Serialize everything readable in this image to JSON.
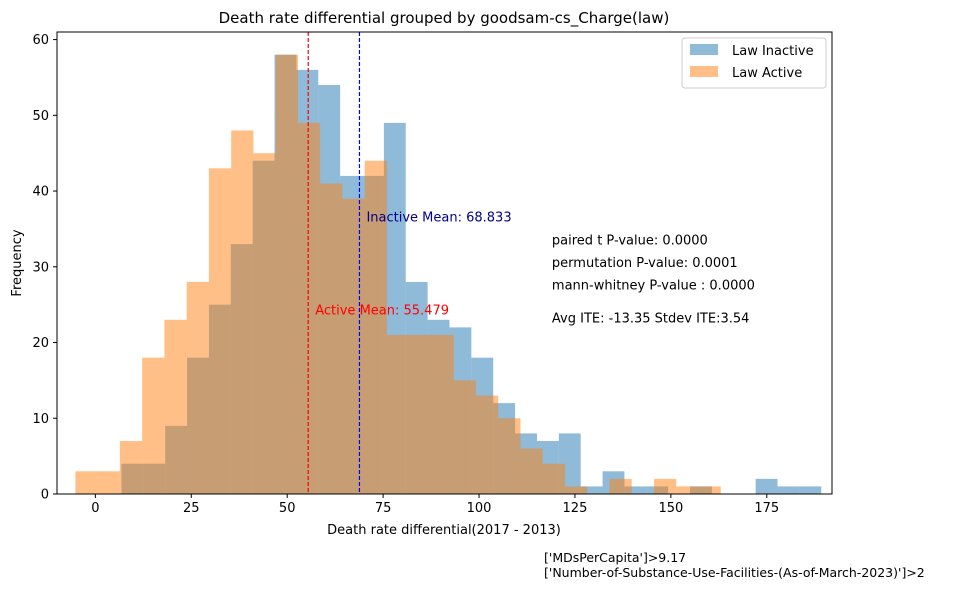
{
  "chart_data": {
    "type": "bar",
    "title": "Death rate differential grouped by goodsam-cs_Charge(law)",
    "xlabel": "Death rate differential(2017 - 2013)",
    "ylabel": "Frequency",
    "xlim": [
      -10,
      192
    ],
    "ylim": [
      0,
      61
    ],
    "xticks": [
      0,
      25,
      50,
      75,
      100,
      125,
      150,
      175
    ],
    "yticks": [
      0,
      10,
      20,
      30,
      40,
      50,
      60
    ],
    "legend_position": "upper right",
    "series": [
      {
        "name": "Law Inactive",
        "color": "#1f77b4",
        "opacity": 0.5,
        "bin_edges": [
          6.8,
          12.5,
          18.2,
          23.9,
          29.6,
          35.3,
          41.0,
          46.7,
          52.4,
          58.1,
          63.8,
          69.5,
          75.2,
          80.9,
          86.6,
          92.3,
          98.0,
          103.7,
          109.4,
          115.1,
          120.8,
          126.5,
          132.2,
          137.9,
          143.6,
          149.3,
          155.0,
          160.7,
          166.4,
          172.1,
          177.8,
          183.5,
          189.2
        ],
        "counts": [
          4,
          4,
          9,
          18,
          25,
          33,
          44,
          58,
          56,
          54,
          42,
          42,
          49,
          28,
          23,
          22,
          18,
          12,
          8,
          7,
          8,
          1,
          3,
          1,
          1,
          0,
          1,
          0,
          0,
          2,
          1,
          1
        ]
      },
      {
        "name": "Law Active",
        "color": "#ff7f0e",
        "opacity": 0.5,
        "bin_edges": [
          -5.2,
          0.6,
          6.4,
          12.2,
          18.0,
          23.8,
          29.6,
          35.4,
          41.2,
          47.0,
          52.8,
          58.6,
          64.4,
          70.2,
          76.0,
          81.8,
          87.6,
          93.4,
          99.2,
          105.0,
          110.8,
          116.6,
          122.4,
          128.2,
          134.0,
          139.8,
          145.6,
          151.4,
          157.2,
          163.0
        ],
        "counts": [
          3,
          3,
          7,
          18,
          23,
          28,
          43,
          48,
          45,
          58,
          49,
          41,
          39,
          44,
          21,
          21,
          21,
          15,
          13,
          10,
          6,
          4,
          1,
          0,
          2,
          0,
          2,
          1,
          1
        ]
      }
    ],
    "mean_lines": [
      {
        "label": "Inactive Mean: 68.833",
        "value": 68.833,
        "color": "#0000ff",
        "text_color": "#00008b",
        "label_y": 36.5
      },
      {
        "label": "Active Mean: 55.479",
        "value": 55.479,
        "color": "#ff0000",
        "text_color": "#ff0000",
        "label_y": 24.2
      }
    ],
    "annotations": [
      {
        "text": "paired t P-value: 0.0000",
        "x": 119,
        "y": 33.5
      },
      {
        "text": "permutation P-value: 0.0001",
        "x": 119,
        "y": 30.5
      },
      {
        "text": "mann-whitney P-value : 0.0000",
        "x": 119,
        "y": 27.5
      },
      {
        "text": "Avg ITE: -13.35 Stdev ITE:3.54",
        "x": 119,
        "y": 23.2
      }
    ]
  },
  "notes": {
    "line1": "['MDsPerCapita']>9.17",
    "line2": "['Number-of-Substance-Use-Facilities-(As-of-March-2023)']>2"
  }
}
